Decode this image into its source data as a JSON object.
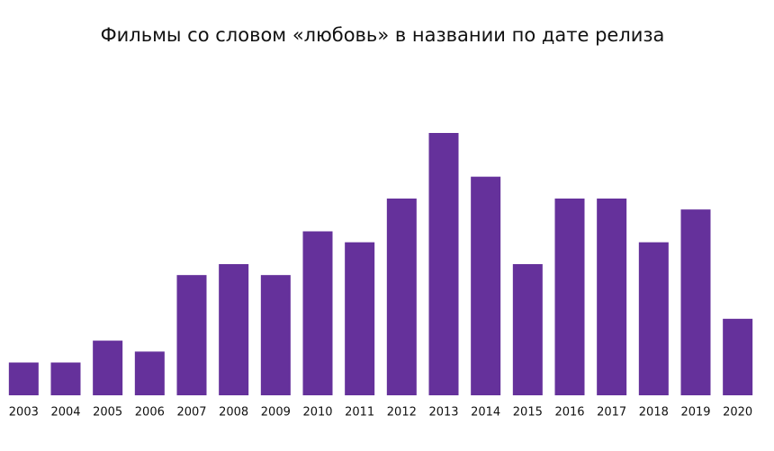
{
  "chart_data": {
    "type": "bar",
    "title": "Фильмы со словом «любовь» в названии по дате релиза",
    "categories": [
      "2003",
      "2004",
      "2005",
      "2006",
      "2007",
      "2008",
      "2009",
      "2010",
      "2011",
      "2012",
      "2013",
      "2014",
      "2015",
      "2016",
      "2017",
      "2018",
      "2019",
      "2020"
    ],
    "values": [
      3,
      3,
      5,
      4,
      11,
      12,
      11,
      15,
      14,
      18,
      24,
      20,
      12,
      18,
      18,
      14,
      17,
      7
    ],
    "color": "#65319b",
    "ylim": [
      0,
      24
    ]
  }
}
